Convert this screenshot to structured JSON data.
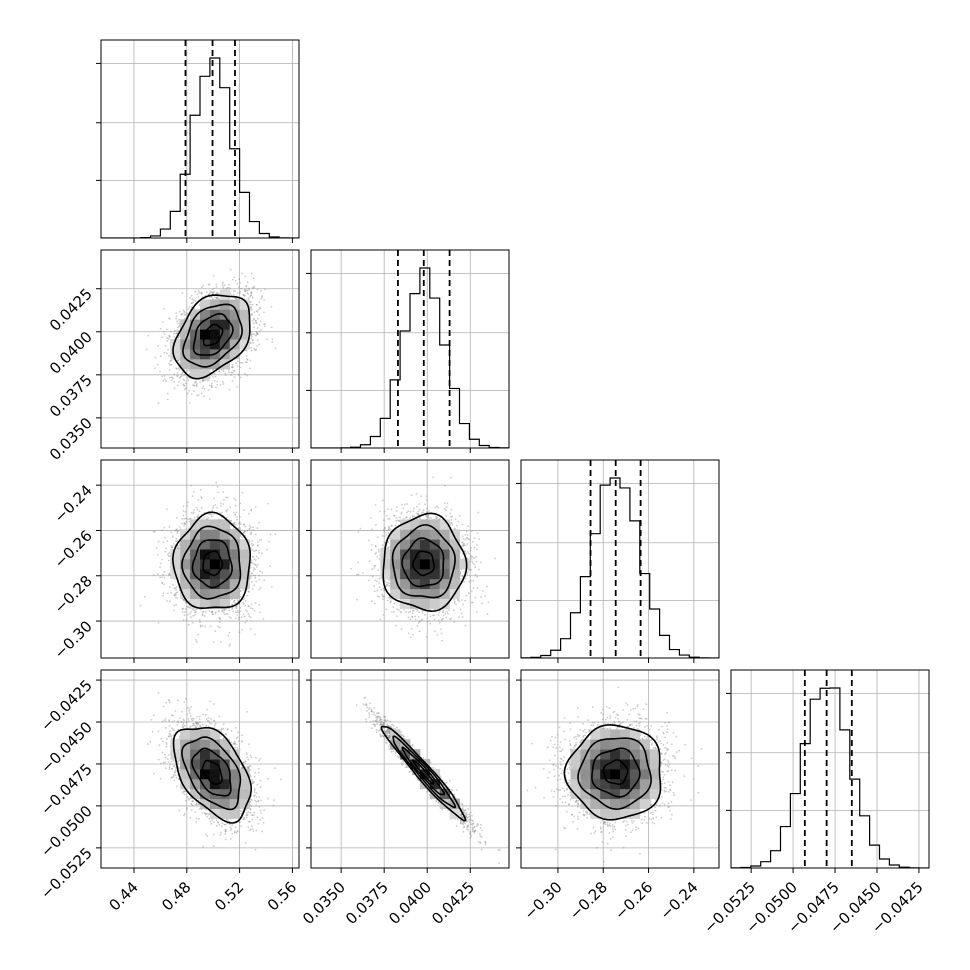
{
  "chart_data": {
    "type": "corner",
    "title": "",
    "parameters": [
      {
        "index": 0,
        "xlabel": "",
        "range": [
          0.415,
          0.565
        ],
        "mean": 0.4995,
        "sigma": 0.0145,
        "quantiles": [
          0.479,
          0.4995,
          0.5165
        ],
        "ticks": [
          0.44,
          0.48,
          0.52,
          0.56
        ],
        "tick_labels": [
          "0.44",
          "0.48",
          "0.52",
          "0.56"
        ]
      },
      {
        "index": 1,
        "xlabel": "",
        "range": [
          0.03325,
          0.04475
        ],
        "mean": 0.0398,
        "sigma": 0.0012,
        "quantiles": [
          0.0383,
          0.0398,
          0.0413
        ],
        "ticks": [
          0.035,
          0.0375,
          0.04,
          0.0425
        ],
        "tick_labels": [
          "0.0350",
          "0.0375",
          "0.0400",
          "0.0425"
        ]
      },
      {
        "index": 2,
        "xlabel": "",
        "range": [
          -0.3163,
          -0.2289
        ],
        "mean": -0.2745,
        "sigma": 0.0105,
        "quantiles": [
          -0.2856,
          -0.2745,
          -0.2635
        ],
        "ticks": [
          -0.3,
          -0.28,
          -0.26,
          -0.24
        ],
        "tick_labels": [
          "−0.30",
          "−0.28",
          "−0.26",
          "−0.24"
        ]
      },
      {
        "index": 3,
        "xlabel": "",
        "range": [
          -0.0537,
          -0.0419
        ],
        "mean": -0.048,
        "sigma": 0.0014,
        "quantiles": [
          -0.0493,
          -0.048,
          -0.0465
        ],
        "ticks": [
          -0.0525,
          -0.05,
          -0.0475,
          -0.045,
          -0.0425
        ],
        "tick_labels": [
          "−0.0525",
          "−0.0500",
          "−0.0475",
          "−0.0450",
          "−0.0425"
        ]
      }
    ],
    "correlations": [
      {
        "i": 1,
        "j": 0,
        "rho": 0.35
      },
      {
        "i": 2,
        "j": 0,
        "rho": 0.0
      },
      {
        "i": 2,
        "j": 1,
        "rho": 0.0
      },
      {
        "i": 3,
        "j": 0,
        "rho": -0.45
      },
      {
        "i": 3,
        "j": 1,
        "rho": -0.97
      },
      {
        "i": 3,
        "j": 2,
        "rho": 0.0
      }
    ],
    "contour_levels_sigma": [
      0.5,
      1.0,
      1.5,
      2.0
    ],
    "grid": true,
    "legend": "none"
  }
}
